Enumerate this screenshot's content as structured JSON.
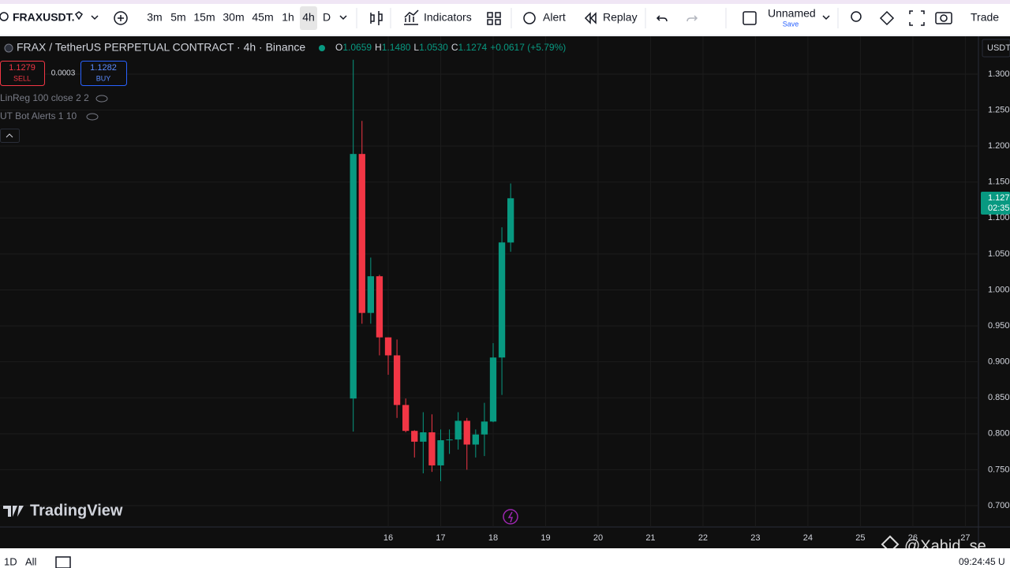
{
  "toolbar": {
    "symbol": "FRAXUSDT.",
    "intervals": [
      "3m",
      "5m",
      "15m",
      "30m",
      "45m",
      "1h",
      "4h",
      "D"
    ],
    "indicators": "Indicators",
    "alert": "Alert",
    "replay": "Replay",
    "layout_name": "Unnamed",
    "save": "Save",
    "trade": "Trade"
  },
  "legend": {
    "title": "FRAX / TetherUS PERPETUAL CONTRACT · 4h · Binance",
    "open_label": "O",
    "open": "1.0659",
    "high_label": "H",
    "high": "1.1480",
    "low_label": "L",
    "low": "1.0530",
    "close_label": "C",
    "close": "1.1274",
    "change": "+0.0617 (+5.79%)"
  },
  "trade_panel": {
    "sell_price": "1.1279",
    "sell": "SELL",
    "spread": "0.0003",
    "buy_price": "1.1282",
    "buy": "BUY"
  },
  "indicators": [
    "LinReg 100 close 2 2",
    "UT Bot Alerts 1 10"
  ],
  "currency": "USDT",
  "price_tag": {
    "price": "1.127",
    "countdown": "02:35"
  },
  "watermark": "TradingView",
  "bottom_bar": {
    "ranges": [
      "1D",
      "All"
    ],
    "time": "09:24:45 U"
  },
  "overlay": "@Xahid_se",
  "chart_data": {
    "type": "candlestick",
    "x": [
      0,
      1,
      2,
      3,
      4,
      5,
      6,
      7,
      8,
      9,
      10,
      11,
      12,
      13,
      14,
      15,
      16,
      17,
      18
    ],
    "open": [
      0.849,
      1.189,
      0.968,
      1.019,
      0.934,
      0.909,
      0.84,
      0.804,
      0.789,
      0.802,
      0.756,
      0.791,
      0.792,
      0.818,
      0.785,
      0.799,
      0.817,
      0.906,
      1.0659
    ],
    "high": [
      1.32,
      1.235,
      1.045,
      1.021,
      0.934,
      0.931,
      0.849,
      0.805,
      0.83,
      0.827,
      0.806,
      0.806,
      0.83,
      0.822,
      0.806,
      0.843,
      0.926,
      1.087,
      1.148
    ],
    "low": [
      0.803,
      0.953,
      0.953,
      0.909,
      0.882,
      0.822,
      0.802,
      0.767,
      0.745,
      0.747,
      0.734,
      0.772,
      0.778,
      0.75,
      0.767,
      0.769,
      0.816,
      0.854,
      1.053
    ],
    "close": [
      1.189,
      0.968,
      1.019,
      0.934,
      0.909,
      0.84,
      0.804,
      0.789,
      0.802,
      0.756,
      0.791,
      0.792,
      0.818,
      0.785,
      0.799,
      0.817,
      0.906,
      1.066,
      1.1274
    ],
    "up_color": "#089981",
    "down_color": "#f23645",
    "xlim": [
      -40.4,
      71.5
    ],
    "xticks": [
      {
        "value": 4,
        "label": "16"
      },
      {
        "value": 10,
        "label": "17"
      },
      {
        "value": 16,
        "label": "18"
      },
      {
        "value": 22,
        "label": "19"
      },
      {
        "value": 28,
        "label": "20"
      },
      {
        "value": 34,
        "label": "21"
      },
      {
        "value": 40,
        "label": "22"
      },
      {
        "value": 46,
        "label": "23"
      },
      {
        "value": 52,
        "label": "24"
      },
      {
        "value": 58,
        "label": "25"
      },
      {
        "value": 64,
        "label": "26"
      },
      {
        "value": 70,
        "label": "27"
      }
    ],
    "ylim": [
      0.6704,
      1.3526
    ],
    "yticks": [
      {
        "value": 1.3,
        "label": "1.300"
      },
      {
        "value": 1.25,
        "label": "1.250"
      },
      {
        "value": 1.2,
        "label": "1.200"
      },
      {
        "value": 1.15,
        "label": "1.150"
      },
      {
        "value": 1.1,
        "label": "1.100"
      },
      {
        "value": 1.05,
        "label": "1.050"
      },
      {
        "value": 1,
        "label": "1.000"
      },
      {
        "value": 0.95,
        "label": "0.950"
      },
      {
        "value": 0.9,
        "label": "0.900"
      },
      {
        "value": 0.85,
        "label": "0.850"
      },
      {
        "value": 0.8,
        "label": "0.800"
      },
      {
        "value": 0.75,
        "label": "0.750"
      },
      {
        "value": 0.7,
        "label": "0.700"
      }
    ],
    "grid": true
  }
}
